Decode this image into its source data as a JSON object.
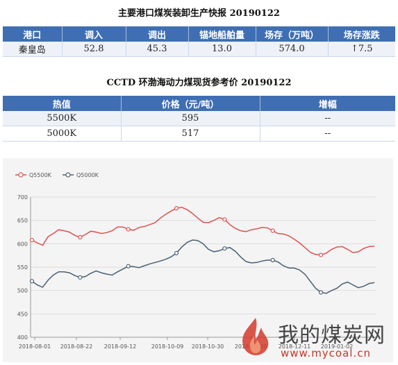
{
  "port_report": {
    "title": "主要港口煤炭装卸生产快报 20190122",
    "headers": [
      "港口",
      "调入",
      "调出",
      "锚地船舶量",
      "场存（万吨）",
      "场存涨跌"
    ],
    "rows": [
      [
        "秦皇岛",
        "52.8",
        "45.3",
        "13.0",
        "574.0",
        "↑7.5"
      ]
    ]
  },
  "cctd_report": {
    "title": "CCTD 环渤海动力煤现货参考价 20190122",
    "headers": [
      "热值",
      "价格（元/吨）",
      "增幅"
    ],
    "rows": [
      [
        "5500K",
        "595",
        "--"
      ],
      [
        "5000K",
        "517",
        "--"
      ]
    ]
  },
  "watermark": {
    "text": "我的煤炭网",
    "url": "www.mycoal.cn"
  },
  "chart_data": {
    "type": "line",
    "ylim": [
      400,
      700
    ],
    "yticks": [
      "700",
      "650",
      "600",
      "550",
      "500",
      "450",
      "400"
    ],
    "xtick_labels": [
      "2018-08-01",
      "2018-08-22",
      "2018-09-12",
      "2018-10-09",
      "2018-10-30",
      "2018-11-20",
      "2018-12-11",
      "2019-01-02"
    ],
    "grid": true,
    "legend_position": "top-left",
    "series": [
      {
        "name": "Q5500K",
        "color": "#d9534f",
        "values": [
          608,
          602,
          597,
          615,
          622,
          630,
          628,
          625,
          618,
          614,
          620,
          627,
          625,
          622,
          624,
          628,
          636,
          636,
          631,
          629,
          635,
          637,
          641,
          645,
          655,
          663,
          670,
          676,
          678,
          673,
          665,
          655,
          646,
          645,
          650,
          656,
          652,
          641,
          633,
          628,
          626,
          630,
          632,
          635,
          634,
          628,
          622,
          621,
          617,
          610,
          602,
          592,
          582,
          577,
          576,
          580,
          588,
          593,
          594,
          588,
          581,
          583,
          590,
          594,
          595
        ]
      },
      {
        "name": "Q5000K",
        "color": "#4a5f72",
        "values": [
          520,
          512,
          507,
          522,
          533,
          540,
          540,
          538,
          532,
          528,
          530,
          537,
          542,
          538,
          535,
          533,
          540,
          546,
          552,
          551,
          549,
          553,
          557,
          560,
          563,
          567,
          572,
          580,
          593,
          603,
          608,
          607,
          600,
          588,
          583,
          585,
          590,
          592,
          584,
          572,
          562,
          559,
          560,
          563,
          565,
          565,
          561,
          553,
          548,
          548,
          544,
          535,
          520,
          505,
          496,
          494,
          500,
          505,
          514,
          518,
          512,
          506,
          509,
          515,
          517
        ]
      }
    ]
  }
}
